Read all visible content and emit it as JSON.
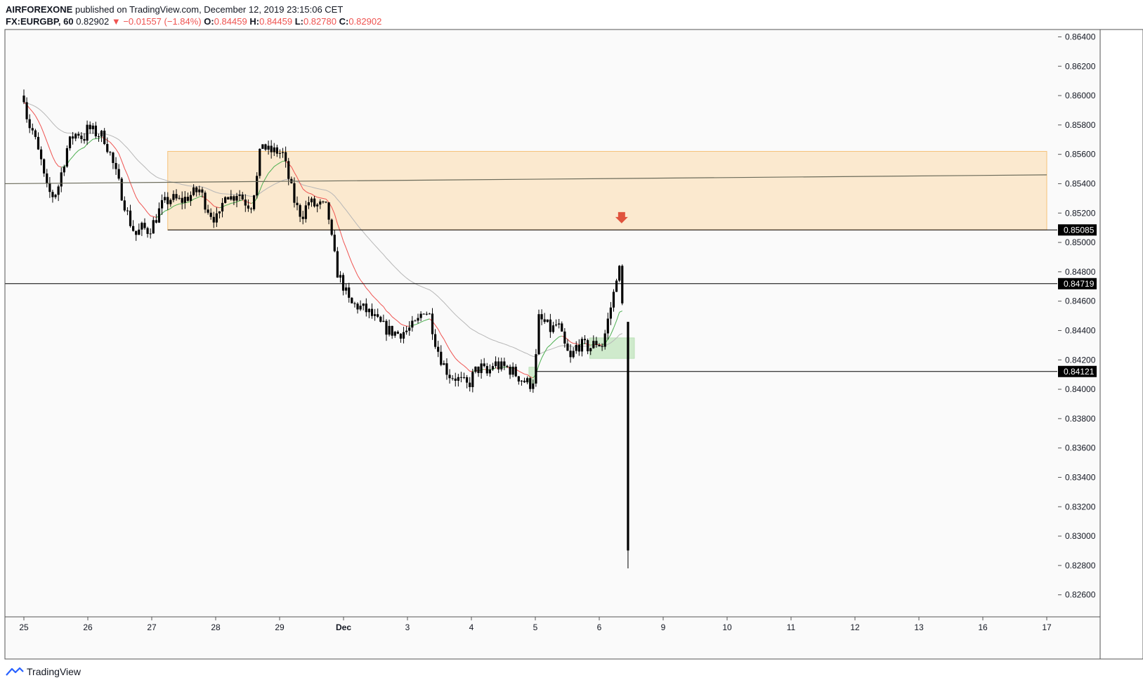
{
  "header": {
    "publisher": "AIRFOREXONE",
    "published_text": "published on TradingView.com, December 12, 2019 23:15:06 CET",
    "symbol": "FX:EURGBP, 60",
    "last": "0.82902",
    "change": "−0.01557 (−1.84%)",
    "o_label": "O:",
    "o_value": "0.84459",
    "h_label": "H:",
    "h_value": "0.84459",
    "l_label": "L:",
    "l_value": "0.82780",
    "c_label": "C:",
    "c_value": "0.82902"
  },
  "footer": {
    "brand": "TradingView"
  },
  "colors": {
    "zone_fill": "#fbe9cf",
    "zone_border": "#f5c27a",
    "green_zone": "#cfeacc",
    "up_ma": "#4caf50",
    "down_ma": "#ef5350",
    "slow_ma": "#b7b7b7",
    "trendline": "#6b6b5a",
    "arrow": "#e0533d",
    "candle": "#000000"
  },
  "chart_data": {
    "type": "candlestick",
    "symbol": "FX:EURGBP",
    "interval": "60",
    "ylim": [
      0.8245,
      0.8645
    ],
    "y_ticks": [
      "0.86400",
      "0.86200",
      "0.86000",
      "0.85800",
      "0.85600",
      "0.85400",
      "0.85200",
      "0.85000",
      "0.84800",
      "0.84600",
      "0.84400",
      "0.84200",
      "0.84000",
      "0.83800",
      "0.83600",
      "0.83400",
      "0.83200",
      "0.83000",
      "0.82800",
      "0.82600"
    ],
    "x_ticks": [
      {
        "label": "25",
        "i": 0
      },
      {
        "label": "26",
        "i": 1
      },
      {
        "label": "27",
        "i": 2
      },
      {
        "label": "28",
        "i": 3
      },
      {
        "label": "29",
        "i": 4
      },
      {
        "label": "Dec",
        "i": 5
      },
      {
        "label": "3",
        "i": 6
      },
      {
        "label": "4",
        "i": 7
      },
      {
        "label": "5",
        "i": 8
      },
      {
        "label": "6",
        "i": 9
      },
      {
        "label": "9",
        "i": 10
      },
      {
        "label": "10",
        "i": 11
      },
      {
        "label": "11",
        "i": 12
      },
      {
        "label": "12",
        "i": 13
      },
      {
        "label": "13",
        "i": 14
      },
      {
        "label": "16",
        "i": 15
      },
      {
        "label": "17",
        "i": 16
      }
    ],
    "price_labels": [
      {
        "value": "0.85085",
        "price": 0.85085
      },
      {
        "value": "0.84719",
        "price": 0.84719
      },
      {
        "value": "0.84121",
        "price": 0.84121
      }
    ],
    "close_path": [
      [
        0.0,
        0.86
      ],
      [
        0.05,
        0.8585
      ],
      [
        0.1,
        0.8578
      ],
      [
        0.15,
        0.8575
      ],
      [
        0.2,
        0.8565
      ],
      [
        0.27,
        0.8555
      ],
      [
        0.32,
        0.8543
      ],
      [
        0.37,
        0.8535
      ],
      [
        0.45,
        0.8532
      ],
      [
        0.52,
        0.8535
      ],
      [
        0.6,
        0.855
      ],
      [
        0.68,
        0.8565
      ],
      [
        0.76,
        0.8572
      ],
      [
        0.85,
        0.8575
      ],
      [
        0.93,
        0.857
      ],
      [
        1.0,
        0.8578
      ],
      [
        1.1,
        0.8575
      ],
      [
        1.25,
        0.8572
      ],
      [
        1.35,
        0.856
      ],
      [
        1.45,
        0.8545
      ],
      [
        1.55,
        0.853
      ],
      [
        1.65,
        0.8515
      ],
      [
        1.75,
        0.8505
      ],
      [
        1.85,
        0.851
      ],
      [
        1.95,
        0.8508
      ],
      [
        2.05,
        0.8515
      ],
      [
        2.15,
        0.8525
      ],
      [
        2.3,
        0.853
      ],
      [
        2.45,
        0.8528
      ],
      [
        2.6,
        0.8532
      ],
      [
        2.75,
        0.8536
      ],
      [
        2.85,
        0.8525
      ],
      [
        2.95,
        0.8518
      ],
      [
        3.05,
        0.8515
      ],
      [
        3.15,
        0.8535
      ],
      [
        3.25,
        0.853
      ],
      [
        3.35,
        0.8535
      ],
      [
        3.45,
        0.8528
      ],
      [
        3.55,
        0.8525
      ],
      [
        3.65,
        0.8545
      ],
      [
        3.72,
        0.857
      ],
      [
        3.8,
        0.8562
      ],
      [
        3.95,
        0.8562
      ],
      [
        4.05,
        0.856
      ],
      [
        4.15,
        0.8542
      ],
      [
        4.25,
        0.8525
      ],
      [
        4.35,
        0.8518
      ],
      [
        4.45,
        0.8528
      ],
      [
        4.55,
        0.8525
      ],
      [
        4.65,
        0.8525
      ],
      [
        4.75,
        0.8523
      ],
      [
        4.82,
        0.85
      ],
      [
        4.9,
        0.848
      ],
      [
        5.0,
        0.847
      ],
      [
        5.1,
        0.8458
      ],
      [
        5.2,
        0.8457
      ],
      [
        5.3,
        0.8455
      ],
      [
        5.4,
        0.8452
      ],
      [
        5.55,
        0.8445
      ],
      [
        5.7,
        0.844
      ],
      [
        5.85,
        0.8438
      ],
      [
        6.0,
        0.844
      ],
      [
        6.15,
        0.8445
      ],
      [
        6.25,
        0.8455
      ],
      [
        6.35,
        0.845
      ],
      [
        6.45,
        0.843
      ],
      [
        6.55,
        0.8418
      ],
      [
        6.65,
        0.841
      ],
      [
        6.75,
        0.8408
      ],
      [
        6.85,
        0.8405
      ],
      [
        6.95,
        0.8402
      ],
      [
        7.05,
        0.8412
      ],
      [
        7.15,
        0.8415
      ],
      [
        7.25,
        0.841
      ],
      [
        7.35,
        0.8418
      ],
      [
        7.45,
        0.8415
      ],
      [
        7.55,
        0.8415
      ],
      [
        7.65,
        0.8412
      ],
      [
        7.75,
        0.8408
      ],
      [
        7.85,
        0.8405
      ],
      [
        7.95,
        0.8403
      ],
      [
        8.0,
        0.8415
      ],
      [
        8.05,
        0.8448
      ],
      [
        8.15,
        0.8445
      ],
      [
        8.25,
        0.844
      ],
      [
        8.35,
        0.8445
      ],
      [
        8.45,
        0.843
      ],
      [
        8.55,
        0.842
      ],
      [
        8.65,
        0.843
      ],
      [
        8.75,
        0.843
      ],
      [
        8.85,
        0.8428
      ],
      [
        8.95,
        0.8432
      ],
      [
        9.05,
        0.843
      ],
      [
        9.15,
        0.845
      ],
      [
        9.25,
        0.847
      ],
      [
        9.3,
        0.849
      ],
      [
        9.35,
        0.846
      ],
      [
        9.4,
        0.8445
      ]
    ],
    "last_candle": {
      "open": 0.84459,
      "high": 0.84459,
      "low": 0.8278,
      "close": 0.82902
    },
    "zone": {
      "x_from": 2.25,
      "x_to": 16.0,
      "y_top": 0.8562,
      "y_bottom": 0.85085
    },
    "trendline": {
      "x_from": -0.3,
      "y_from": 0.854,
      "x_to": 16.0,
      "y_to": 0.8546
    },
    "h_lines": [
      {
        "price": 0.84719,
        "x_from": -0.3
      },
      {
        "price": 0.84121,
        "x_from": 8.0
      }
    ],
    "green_zones": [
      {
        "x_from": 7.9,
        "x_to": 8.0,
        "y_top": 0.8415,
        "y_bottom": 0.8404
      },
      {
        "x_from": 8.85,
        "x_to": 9.55,
        "y_top": 0.8435,
        "y_bottom": 0.8421
      }
    ],
    "arrow": {
      "x": 9.35,
      "price": 0.8513
    }
  }
}
